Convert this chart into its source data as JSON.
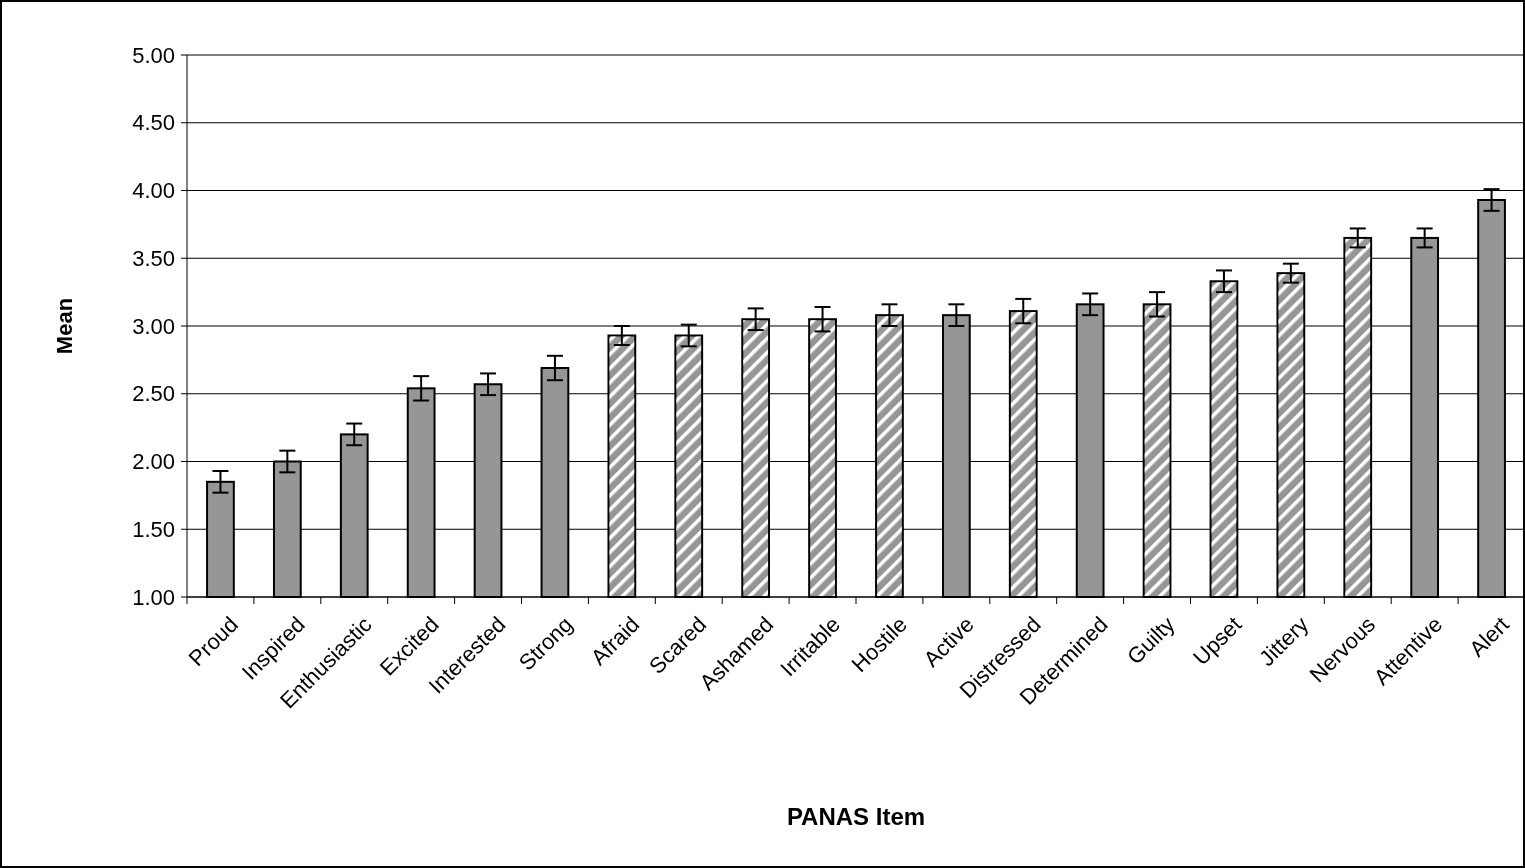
{
  "chart_data": {
    "type": "bar",
    "xlabel": "PANAS Item",
    "ylabel": "Mean",
    "categories": [
      "Proud",
      "Inspired",
      "Enthusiastic",
      "Excited",
      "Interested",
      "Strong",
      "Afraid",
      "Scared",
      "Ashamed",
      "Irritable",
      "Hostile",
      "Active",
      "Distressed",
      "Determined",
      "Guilty",
      "Upset",
      "Jittery",
      "Nervous",
      "Attentive",
      "Alert"
    ],
    "series": [
      {
        "color": "#969696",
        "values": [
          1.85,
          2.0,
          2.2,
          2.54,
          2.57,
          2.69,
          null,
          null,
          null,
          null,
          null,
          3.08,
          null,
          3.16,
          null,
          null,
          null,
          null,
          3.65,
          3.93
        ],
        "errors": [
          0.08,
          0.08,
          0.08,
          0.09,
          0.08,
          0.09,
          null,
          null,
          null,
          null,
          null,
          0.08,
          null,
          0.08,
          null,
          null,
          null,
          null,
          0.07,
          0.08
        ]
      },
      {
        "color": "#969696",
        "values": [
          null,
          null,
          null,
          null,
          null,
          null,
          2.93,
          2.93,
          3.05,
          3.05,
          3.08,
          null,
          3.11,
          null,
          3.16,
          3.33,
          3.39,
          3.65,
          null,
          null
        ],
        "errors": [
          null,
          null,
          null,
          null,
          null,
          null,
          0.07,
          0.08,
          0.08,
          0.09,
          0.08,
          null,
          0.09,
          null,
          0.09,
          0.08,
          0.07,
          0.07,
          null,
          null
        ]
      }
    ],
    "ylim": [
      1,
      5
    ],
    "yticks": [
      {
        "value": 1,
        "label": "1.00"
      },
      {
        "value": 1.5,
        "label": "1.50"
      },
      {
        "value": 2,
        "label": "2.00"
      },
      {
        "value": 2.5,
        "label": "2.50"
      },
      {
        "value": 3,
        "label": "3.00"
      },
      {
        "value": 3.5,
        "label": "3.50"
      },
      {
        "value": 4,
        "label": "4.00"
      },
      {
        "value": 4.5,
        "label": "4.50"
      },
      {
        "value": 5,
        "label": "5.00"
      }
    ],
    "grid": "y"
  }
}
